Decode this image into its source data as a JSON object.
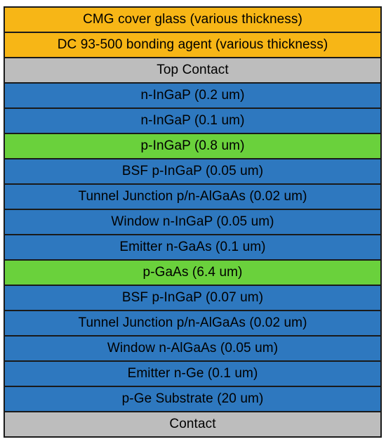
{
  "colors": {
    "cover": "#f7b616",
    "contact": "#bdbdbd",
    "semiconductor": "#2e78bf",
    "absorber": "#6ad13c"
  },
  "layers": [
    {
      "label": "CMG cover glass (various thickness)",
      "material": "cover"
    },
    {
      "label": "DC 93-500 bonding agent (various thickness)",
      "material": "cover"
    },
    {
      "label": "Top Contact",
      "material": "contact"
    },
    {
      "label": "n-InGaP (0.2 um)",
      "material": "semiconductor"
    },
    {
      "label": "n-InGaP (0.1 um)",
      "material": "semiconductor"
    },
    {
      "label": "p-InGaP (0.8 um)",
      "material": "absorber"
    },
    {
      "label": "BSF p-InGaP (0.05 um)",
      "material": "semiconductor"
    },
    {
      "label": "Tunnel Junction p/n-AlGaAs (0.02 um)",
      "material": "semiconductor"
    },
    {
      "label": "Window n-InGaP (0.05 um)",
      "material": "semiconductor"
    },
    {
      "label": "Emitter n-GaAs (0.1 um)",
      "material": "semiconductor"
    },
    {
      "label": "p-GaAs (6.4 um)",
      "material": "absorber"
    },
    {
      "label": "BSF p-InGaP (0.07 um)",
      "material": "semiconductor"
    },
    {
      "label": "Tunnel Junction p/n-AlGaAs (0.02 um)",
      "material": "semiconductor"
    },
    {
      "label": "Window n-AlGaAs (0.05 um)",
      "material": "semiconductor"
    },
    {
      "label": "Emitter n-Ge (0.1 um)",
      "material": "semiconductor"
    },
    {
      "label": "p-Ge Substrate (20 um)",
      "material": "semiconductor"
    },
    {
      "label": "Contact",
      "material": "contact"
    }
  ]
}
